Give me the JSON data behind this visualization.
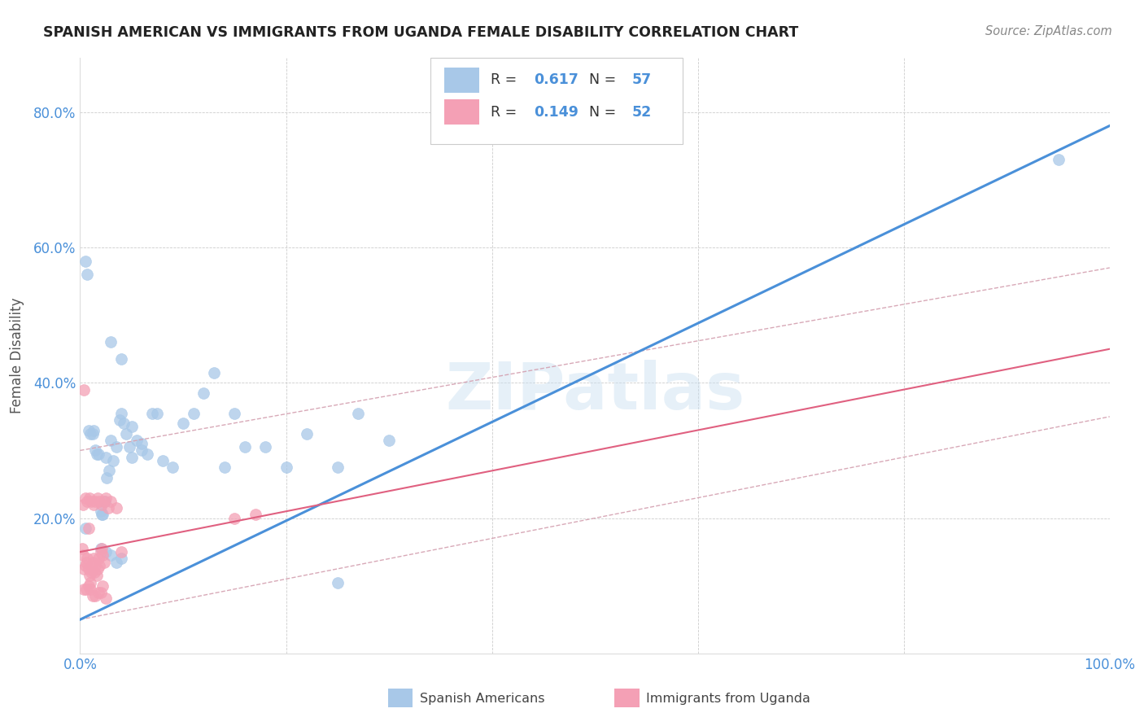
{
  "title": "SPANISH AMERICAN VS IMMIGRANTS FROM UGANDA FEMALE DISABILITY CORRELATION CHART",
  "source": "Source: ZipAtlas.com",
  "ylabel": "Female Disability",
  "xlim": [
    0,
    1.0
  ],
  "ylim": [
    0,
    0.88
  ],
  "xtick_vals": [
    0.0,
    0.2,
    0.4,
    0.6,
    0.8,
    1.0
  ],
  "ytick_vals": [
    0.0,
    0.2,
    0.4,
    0.6,
    0.8
  ],
  "xtick_labels": [
    "0.0%",
    "",
    "",
    "",
    "",
    "100.0%"
  ],
  "ytick_labels": [
    "",
    "20.0%",
    "40.0%",
    "60.0%",
    "80.0%"
  ],
  "blue_color": "#a8c8e8",
  "pink_color": "#f4a0b5",
  "blue_line_color": "#4a90d9",
  "pink_line_color": "#e06080",
  "pink_dashed_color": "#d4a0b0",
  "tick_color": "#4a90d9",
  "legend_r_blue": "0.617",
  "legend_n_blue": "57",
  "legend_r_pink": "0.149",
  "legend_n_pink": "52",
  "legend_label_blue": "Spanish Americans",
  "legend_label_pink": "Immigrants from Uganda",
  "watermark": "ZIPatlas",
  "blue_scatter_x": [
    0.005,
    0.007,
    0.008,
    0.01,
    0.012,
    0.013,
    0.015,
    0.016,
    0.018,
    0.02,
    0.021,
    0.022,
    0.024,
    0.025,
    0.026,
    0.028,
    0.03,
    0.032,
    0.035,
    0.038,
    0.04,
    0.042,
    0.045,
    0.048,
    0.05,
    0.055,
    0.06,
    0.065,
    0.07,
    0.075,
    0.08,
    0.09,
    0.1,
    0.11,
    0.12,
    0.13,
    0.14,
    0.15,
    0.16,
    0.18,
    0.2,
    0.22,
    0.25,
    0.27,
    0.3,
    0.02,
    0.025,
    0.03,
    0.035,
    0.04,
    0.25,
    0.03,
    0.04,
    0.05,
    0.06,
    0.95,
    0.005
  ],
  "blue_scatter_y": [
    0.58,
    0.56,
    0.33,
    0.325,
    0.325,
    0.33,
    0.3,
    0.295,
    0.295,
    0.21,
    0.205,
    0.205,
    0.225,
    0.29,
    0.26,
    0.27,
    0.315,
    0.285,
    0.305,
    0.345,
    0.355,
    0.34,
    0.325,
    0.305,
    0.335,
    0.315,
    0.3,
    0.295,
    0.355,
    0.355,
    0.285,
    0.275,
    0.34,
    0.355,
    0.385,
    0.415,
    0.275,
    0.355,
    0.305,
    0.305,
    0.275,
    0.325,
    0.275,
    0.355,
    0.315,
    0.155,
    0.15,
    0.145,
    0.135,
    0.14,
    0.105,
    0.46,
    0.435,
    0.29,
    0.31,
    0.73,
    0.185
  ],
  "pink_scatter_x": [
    0.002,
    0.003,
    0.004,
    0.005,
    0.006,
    0.007,
    0.008,
    0.009,
    0.01,
    0.011,
    0.012,
    0.013,
    0.014,
    0.015,
    0.016,
    0.017,
    0.018,
    0.019,
    0.02,
    0.021,
    0.022,
    0.023,
    0.004,
    0.006,
    0.008,
    0.01,
    0.012,
    0.015,
    0.018,
    0.02,
    0.022,
    0.025,
    0.003,
    0.005,
    0.007,
    0.009,
    0.011,
    0.013,
    0.015,
    0.017,
    0.019,
    0.021,
    0.023,
    0.025,
    0.027,
    0.03,
    0.035,
    0.04,
    0.15,
    0.17,
    0.004,
    0.008
  ],
  "pink_scatter_y": [
    0.155,
    0.145,
    0.125,
    0.13,
    0.135,
    0.14,
    0.125,
    0.115,
    0.105,
    0.12,
    0.135,
    0.14,
    0.12,
    0.13,
    0.115,
    0.125,
    0.14,
    0.13,
    0.15,
    0.155,
    0.145,
    0.135,
    0.095,
    0.095,
    0.1,
    0.095,
    0.085,
    0.085,
    0.09,
    0.09,
    0.1,
    0.082,
    0.22,
    0.23,
    0.225,
    0.23,
    0.225,
    0.22,
    0.225,
    0.23,
    0.225,
    0.22,
    0.225,
    0.23,
    0.215,
    0.225,
    0.215,
    0.15,
    0.2,
    0.205,
    0.39,
    0.185
  ]
}
